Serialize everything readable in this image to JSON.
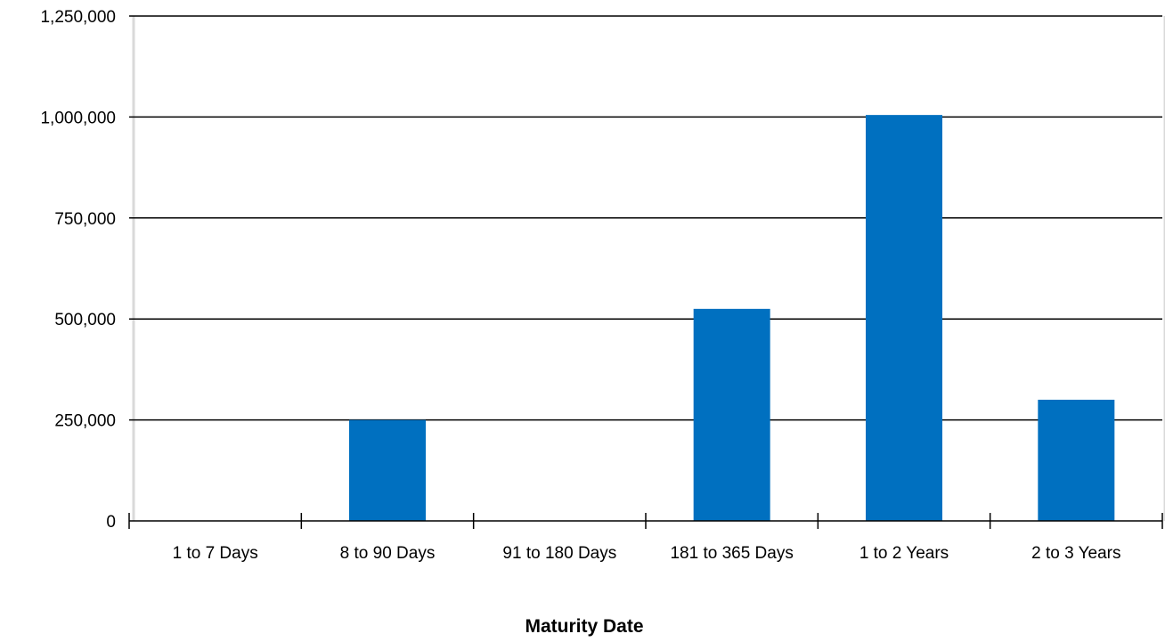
{
  "chart_data": {
    "type": "bar",
    "title": "",
    "xlabel": "Maturity Date",
    "ylabel": "",
    "categories": [
      "1 to 7 Days",
      "8 to 90 Days",
      "91 to 180 Days",
      "181 to 365 Days",
      "1 to 2 Years",
      "2 to 3 Years"
    ],
    "series": [
      {
        "values": [
          0,
          250000,
          0,
          525000,
          1005000,
          300000
        ]
      }
    ],
    "ylim": [
      0,
      1250000
    ],
    "yticks": [
      0,
      250000,
      500000,
      750000,
      1000000,
      1250000
    ],
    "ytick_labels": [
      "0",
      "250,000",
      "500,000",
      "750,000",
      "1,000,000",
      "1,250,000"
    ],
    "grid": true,
    "legend": "none",
    "colors": {
      "bar": "#0070C0",
      "grid": "#000000",
      "frame": "#D9D9D9"
    }
  }
}
